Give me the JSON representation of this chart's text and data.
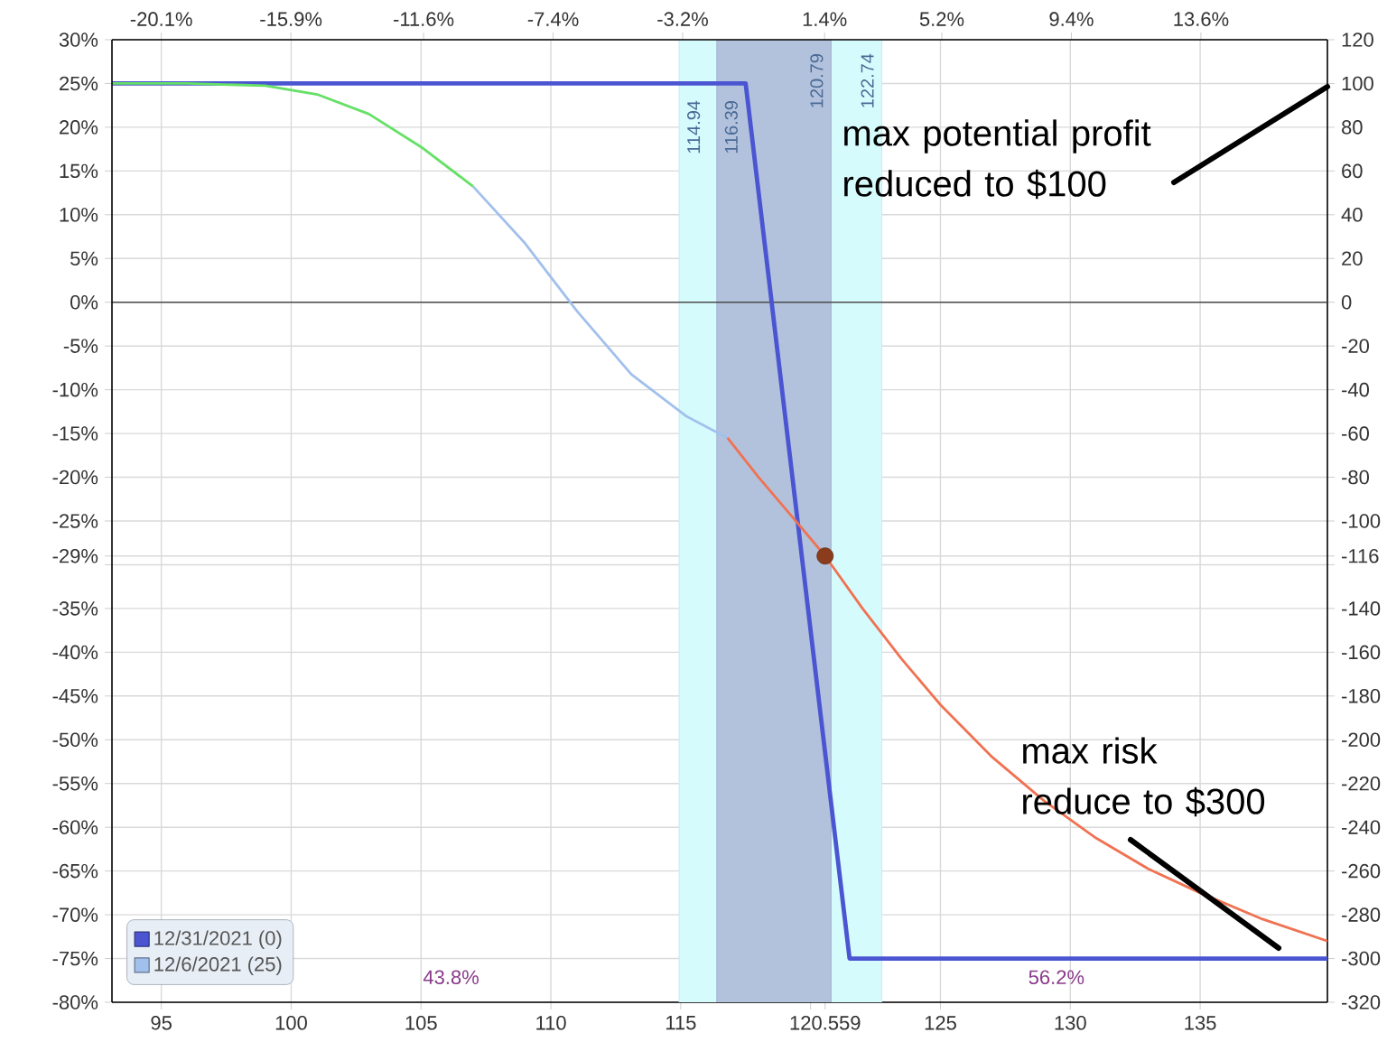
{
  "chart_data": {
    "type": "line",
    "xlim": [
      93.1,
      139.9
    ],
    "xticks": [
      95,
      100,
      105,
      110,
      115,
      {
        "value": 120,
        "label": null
      },
      {
        "value": 120.559,
        "label": "120.559"
      },
      125,
      130,
      135
    ],
    "x2lim": [
      -21.7,
      17.7
    ],
    "x2ticks": [
      {
        "value": -20.1,
        "label": "-20.1%"
      },
      {
        "value": -15.9,
        "label": "-15.9%"
      },
      {
        "value": -11.6,
        "label": "-11.6%"
      },
      {
        "value": -7.4,
        "label": "-7.4%"
      },
      {
        "value": -3.2,
        "label": "-3.2%"
      },
      {
        "value": 1.4,
        "label": "1.4%"
      },
      {
        "value": 5.2,
        "label": "5.2%"
      },
      {
        "value": 9.4,
        "label": "9.4%"
      },
      {
        "value": 13.6,
        "label": "13.6%"
      }
    ],
    "ylim": [
      -80,
      30
    ],
    "yticks": [
      {
        "value": -80,
        "label": "-80%"
      },
      {
        "value": -75,
        "label": "-75%"
      },
      {
        "value": -70,
        "label": "-70%"
      },
      {
        "value": -65,
        "label": "-65%"
      },
      {
        "value": -60,
        "label": "-60%"
      },
      {
        "value": -55,
        "label": "-55%"
      },
      {
        "value": -50,
        "label": "-50%"
      },
      {
        "value": -45,
        "label": "-45%"
      },
      {
        "value": -40,
        "label": "-40%"
      },
      {
        "value": -35,
        "label": "-35%"
      },
      {
        "value": -30,
        "label": null
      },
      {
        "value": -29,
        "label": "-29%"
      },
      {
        "value": -25,
        "label": "-25%"
      },
      {
        "value": -20,
        "label": "-20%"
      },
      {
        "value": -15,
        "label": "-15%"
      },
      {
        "value": -10,
        "label": "-10%"
      },
      {
        "value": -5,
        "label": "-5%"
      },
      {
        "value": 0,
        "label": "0%"
      },
      {
        "value": 5,
        "label": "5%"
      },
      {
        "value": 10,
        "label": "10%"
      },
      {
        "value": 15,
        "label": "15%"
      },
      {
        "value": 20,
        "label": "20%"
      },
      {
        "value": 25,
        "label": "25%"
      },
      {
        "value": 30,
        "label": "30%"
      }
    ],
    "y2lim": [
      -320,
      120
    ],
    "y2ticks": [
      -320,
      -300,
      -280,
      -260,
      -240,
      -220,
      -200,
      -180,
      -160,
      -140,
      {
        "value": -120,
        "label": null
      },
      {
        "value": -116,
        "label": "-116"
      },
      -100,
      -80,
      -60,
      -40,
      -20,
      0,
      20,
      40,
      60,
      80,
      100,
      120
    ],
    "grid": true,
    "legend": "bottom left",
    "bands": [
      {
        "axis": "x",
        "from": 114.94,
        "to": 122.74,
        "color": "#d6fbfd"
      },
      {
        "axis": "x",
        "from": 116.39,
        "to": 120.79,
        "color": "#b2c2dc"
      }
    ],
    "ref_lines": [
      {
        "axis": "x",
        "value": 114.94,
        "label": "114.94",
        "color": "#c8eef4"
      },
      {
        "axis": "x",
        "value": 116.39,
        "label": "116.39",
        "color": "#a8b9d6"
      },
      {
        "axis": "x",
        "value": 120.79,
        "label": "120.79",
        "color": "#a8b9d6"
      },
      {
        "axis": "x",
        "value": 122.74,
        "label": "122.74",
        "color": "#c8eef4"
      },
      {
        "axis": "y2",
        "value": 0,
        "color": "#4a4a4a"
      }
    ],
    "series": [
      {
        "name": "12/31/2021 (0)",
        "color": "#4b55d2",
        "axis": "y2",
        "x": [
          93.1,
          117.5,
          121.5,
          139.9
        ],
        "values": [
          100,
          100,
          -300,
          -300
        ]
      },
      {
        "name": "12/6/2021 (25)",
        "color": "#a2c0ec",
        "axis": "y2",
        "x": [
          107,
          109,
          111,
          113.1,
          115.2,
          116.8
        ],
        "values": [
          53,
          27,
          -4,
          -33,
          -52,
          -62
        ]
      },
      {
        "color": "#66e066",
        "axis": "y2",
        "x": [
          93.1,
          96,
          99,
          101,
          103,
          105,
          107
        ],
        "values": [
          100,
          100,
          99,
          95,
          86,
          71,
          53
        ]
      },
      {
        "color": "#f07252",
        "axis": "y2",
        "x": [
          116.8,
          118,
          119.5,
          120.559,
          122,
          123.5,
          125,
          127,
          129,
          131,
          133,
          135,
          137.4,
          139.9
        ],
        "values": [
          -62,
          -80,
          -101,
          -116,
          -140,
          -163,
          -184,
          -208,
          -228,
          -245,
          -259,
          -270,
          -282,
          -292
        ]
      },
      {
        "type": "scatter",
        "marker": "circle",
        "color": "#8b3c1c",
        "axis": "y2",
        "x": [
          120.559
        ],
        "values": [
          -116
        ]
      }
    ],
    "annotations": [
      "max potential profit reduced to $100",
      "max risk reduce to $300",
      "43.8%",
      "56.2%"
    ]
  }
}
